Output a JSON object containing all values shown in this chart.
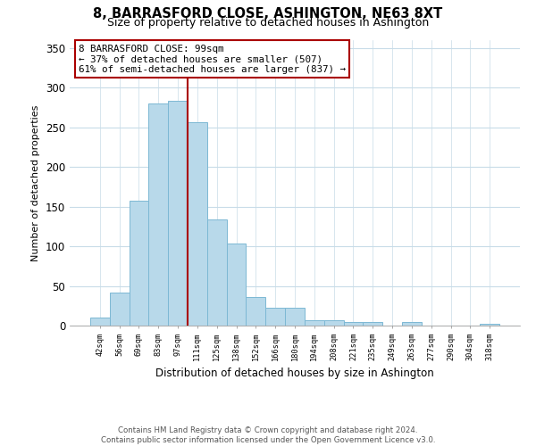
{
  "title": "8, BARRASFORD CLOSE, ASHINGTON, NE63 8XT",
  "subtitle": "Size of property relative to detached houses in Ashington",
  "xlabel": "Distribution of detached houses by size in Ashington",
  "ylabel": "Number of detached properties",
  "bar_labels": [
    "42sqm",
    "56sqm",
    "69sqm",
    "83sqm",
    "97sqm",
    "111sqm",
    "125sqm",
    "138sqm",
    "152sqm",
    "166sqm",
    "180sqm",
    "194sqm",
    "208sqm",
    "221sqm",
    "235sqm",
    "249sqm",
    "263sqm",
    "277sqm",
    "290sqm",
    "304sqm",
    "318sqm"
  ],
  "bar_values": [
    10,
    42,
    157,
    280,
    283,
    257,
    134,
    103,
    36,
    22,
    23,
    7,
    7,
    5,
    4,
    0,
    4,
    0,
    0,
    0,
    2
  ],
  "bar_color": "#b8d9ea",
  "bar_edge_color": "#7db8d4",
  "marker_index": 4,
  "marker_line_color": "#aa0000",
  "annotation_line1": "8 BARRASFORD CLOSE: 99sqm",
  "annotation_line2": "← 37% of detached houses are smaller (507)",
  "annotation_line3": "61% of semi-detached houses are larger (837) →",
  "annotation_box_color": "#ffffff",
  "annotation_box_edge": "#aa0000",
  "ylim": [
    0,
    360
  ],
  "yticks": [
    0,
    50,
    100,
    150,
    200,
    250,
    300,
    350
  ],
  "footer_line1": "Contains HM Land Registry data © Crown copyright and database right 2024.",
  "footer_line2": "Contains public sector information licensed under the Open Government Licence v3.0.",
  "background_color": "#ffffff",
  "grid_color": "#c8dce8"
}
